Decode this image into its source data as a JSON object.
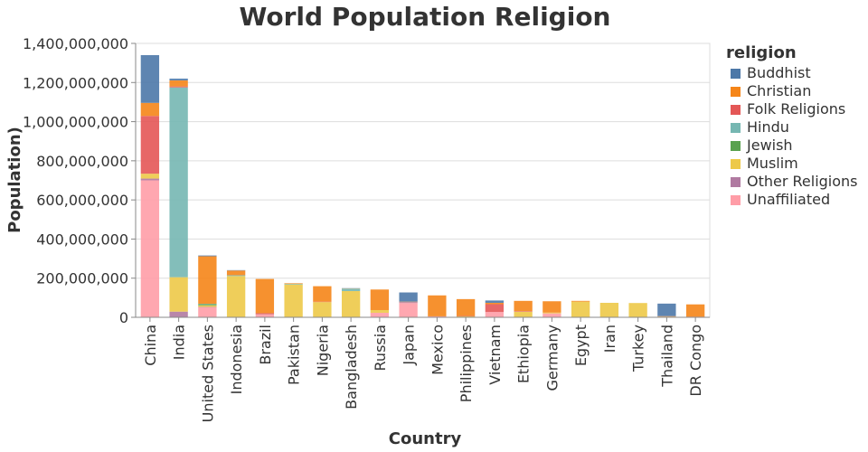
{
  "chart_data": {
    "type": "bar",
    "stacked": true,
    "title": "World Population Religion",
    "xlabel": "Country",
    "ylabel": "Population)",
    "ylim": [
      0,
      1400000000
    ],
    "yticks": [
      0,
      200000000,
      400000000,
      600000000,
      800000000,
      1000000000,
      1200000000,
      1400000000
    ],
    "ytick_labels": [
      "0",
      "200,000,000",
      "400,000,000",
      "600,000,000",
      "800,000,000",
      "1,000,000,000",
      "1,200,000,000",
      "1,400,000,000"
    ],
    "grid": true,
    "legend_title": "religion",
    "legend_position": "right",
    "categories": [
      "China",
      "India",
      "United States",
      "Indonesia",
      "Brazil",
      "Pakistan",
      "Nigeria",
      "Bangladesh",
      "Russia",
      "Japan",
      "Mexico",
      "Philippines",
      "Vietnam",
      "Ethiopia",
      "Germany",
      "Egypt",
      "Iran",
      "Turkey",
      "Thailand",
      "DR Congo"
    ],
    "series": [
      {
        "name": "Unaffiliated",
        "color": "#ff9da7",
        "values": [
          700000000,
          1000000,
          51000000,
          0,
          15000000,
          0,
          0,
          0,
          23000000,
          73000000,
          5000000,
          0,
          27000000,
          0,
          20000000,
          0,
          0,
          0,
          0,
          1000000
        ]
      },
      {
        "name": "Other Religions",
        "color": "#b07aa1",
        "values": [
          9000000,
          28000000,
          2000000,
          1000000,
          1000000,
          0,
          0,
          0,
          0,
          5000000,
          0,
          0,
          0,
          0,
          0,
          0,
          0,
          0,
          0,
          0
        ]
      },
      {
        "name": "Muslim",
        "color": "#edc948",
        "values": [
          25000000,
          176000000,
          8000000,
          210000000,
          0,
          168000000,
          78000000,
          134000000,
          14000000,
          0,
          0,
          5000000,
          0,
          29000000,
          4000000,
          80000000,
          74000000,
          73000000,
          4000000,
          1000000
        ]
      },
      {
        "name": "Jewish",
        "color": "#59a14f",
        "values": [
          0,
          0,
          6000000,
          0,
          0,
          0,
          0,
          0,
          0,
          0,
          0,
          0,
          0,
          0,
          0,
          0,
          0,
          0,
          0,
          0
        ]
      },
      {
        "name": "Hindu",
        "color": "#76b7b2",
        "values": [
          0,
          970000000,
          2000000,
          4000000,
          0,
          3000000,
          0,
          13000000,
          0,
          0,
          0,
          0,
          0,
          0,
          0,
          0,
          0,
          0,
          0,
          0
        ]
      },
      {
        "name": "Folk Religions",
        "color": "#e45756",
        "values": [
          295000000,
          5000000,
          0,
          0,
          5000000,
          0,
          2000000,
          0,
          0,
          0,
          0,
          2000000,
          40000000,
          3000000,
          0,
          0,
          0,
          0,
          1000000,
          1000000
        ]
      },
      {
        "name": "Christian",
        "color": "#f58518",
        "values": [
          67000000,
          31000000,
          243000000,
          24000000,
          175000000,
          3000000,
          79000000,
          1000000,
          105000000,
          2000000,
          107000000,
          86000000,
          7000000,
          52000000,
          58000000,
          4000000,
          0,
          0,
          1000000,
          63000000
        ]
      },
      {
        "name": "Buddhist",
        "color": "#4c78a8",
        "values": [
          244000000,
          9000000,
          4000000,
          2000000,
          0,
          0,
          0,
          1000000,
          0,
          47000000,
          0,
          0,
          12000000,
          0,
          0,
          0,
          0,
          0,
          64000000,
          0
        ]
      }
    ],
    "legend_order": [
      "Buddhist",
      "Christian",
      "Folk Religions",
      "Hindu",
      "Jewish",
      "Muslim",
      "Other Religions",
      "Unaffiliated"
    ]
  }
}
